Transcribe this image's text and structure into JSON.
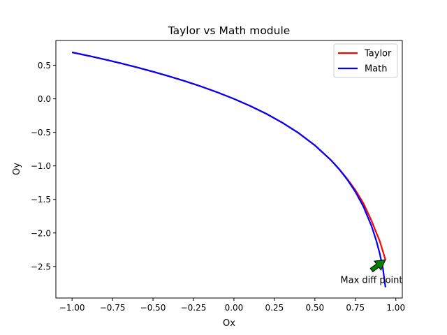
{
  "chart_data": {
    "type": "line",
    "title": "Taylor vs Math module",
    "xlabel": "Ox",
    "ylabel": "Oy",
    "xlim": [
      -1.1,
      1.04
    ],
    "ylim": [
      -2.97,
      0.87
    ],
    "xticks": [
      "−1.00",
      "−0.75",
      "−0.50",
      "−0.25",
      "0.00",
      "0.25",
      "0.50",
      "0.75",
      "1.00"
    ],
    "xtick_values": [
      -1.0,
      -0.75,
      -0.5,
      -0.25,
      0.0,
      0.25,
      0.5,
      0.75,
      1.0
    ],
    "yticks": [
      "0.5",
      "0.0",
      "−0.5",
      "−1.0",
      "−1.5",
      "−2.0",
      "−2.5"
    ],
    "ytick_values": [
      0.5,
      0.0,
      -0.5,
      -1.0,
      -1.5,
      -2.0,
      -2.5
    ],
    "grid": false,
    "legend_position": "upper right",
    "series": [
      {
        "name": "Taylor",
        "color": "#ff0000",
        "x": [
          -1.0,
          -0.9,
          -0.8,
          -0.7,
          -0.6,
          -0.5,
          -0.4,
          -0.3,
          -0.2,
          -0.1,
          0.0,
          0.1,
          0.2,
          0.3,
          0.4,
          0.5,
          0.6,
          0.65,
          0.7,
          0.75,
          0.8,
          0.85,
          0.9,
          0.936
        ],
        "y": [
          0.693,
          0.642,
          0.588,
          0.531,
          0.47,
          0.405,
          0.336,
          0.262,
          0.182,
          0.095,
          0.0,
          -0.105,
          -0.223,
          -0.357,
          -0.511,
          -0.693,
          -0.916,
          -1.047,
          -1.195,
          -1.36,
          -1.56,
          -1.82,
          -2.12,
          -2.4
        ]
      },
      {
        "name": "Math",
        "color": "#0000ff",
        "x": [
          -1.0,
          -0.9,
          -0.8,
          -0.7,
          -0.6,
          -0.5,
          -0.4,
          -0.3,
          -0.2,
          -0.1,
          0.0,
          0.1,
          0.2,
          0.3,
          0.4,
          0.5,
          0.6,
          0.65,
          0.7,
          0.75,
          0.8,
          0.85,
          0.88,
          0.9,
          0.92,
          0.936
        ],
        "y": [
          0.693,
          0.642,
          0.588,
          0.531,
          0.47,
          0.405,
          0.336,
          0.262,
          0.182,
          0.095,
          0.0,
          -0.105,
          -0.223,
          -0.357,
          -0.511,
          -0.693,
          -0.916,
          -1.05,
          -1.204,
          -1.386,
          -1.609,
          -1.897,
          -2.12,
          -2.303,
          -2.526,
          -2.81
        ]
      }
    ],
    "annotations": [
      {
        "text": "Max diff point",
        "x": 0.936,
        "y": -2.4,
        "text_x": 0.85,
        "text_y": -2.7,
        "arrow_color": "#008000"
      }
    ]
  }
}
